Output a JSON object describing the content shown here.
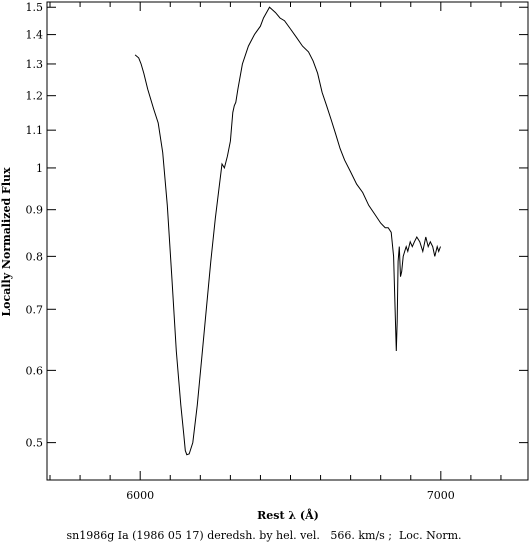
{
  "chart_data": {
    "type": "line",
    "title": "",
    "caption": "sn1986g Ia (1986 05 17) deredsh. by hel. vel.   566. km/s ;  Loc. Norm.",
    "xlabel": "Rest λ (Å)",
    "ylabel": "Locally Normalized Flux",
    "xlim": [
      5690,
      7290
    ],
    "ylim": [
      0.455,
      1.52
    ],
    "y_scale": "log",
    "grid": false,
    "legend": "none",
    "x_ticks": [
      6000,
      7000
    ],
    "y_ticks": [
      0.5,
      0.6,
      0.7,
      0.8,
      0.9,
      1,
      1.1,
      1.2,
      1.3,
      1.4,
      1.5
    ],
    "y_tick_labels": [
      "0.5",
      "0.6",
      "0.7",
      "0.8",
      "0.9",
      "1",
      "1.1",
      "1.2",
      "1.3",
      "1.4",
      "1.5"
    ],
    "line_color": "#000000",
    "series": [
      {
        "x": [
          5983,
          5995,
          6003,
          6012,
          6025,
          6045,
          6060,
          6075,
          6090,
          6105,
          6120,
          6135,
          6145,
          6150,
          6155,
          6163,
          6175,
          6190,
          6205,
          6220,
          6235,
          6250,
          6262,
          6272,
          6280,
          6290,
          6300,
          6303,
          6308,
          6313,
          6318,
          6325,
          6340,
          6360,
          6380,
          6400,
          6410,
          6420,
          6430,
          6440,
          6450,
          6465,
          6480,
          6500,
          6520,
          6540,
          6560,
          6575,
          6590,
          6605,
          6620,
          6635,
          6650,
          6665,
          6680,
          6700,
          6720,
          6740,
          6760,
          6780,
          6800,
          6815,
          6825,
          6835,
          6843,
          6848,
          6852,
          6855,
          6858,
          6862,
          6866,
          6870,
          6875,
          6880,
          6885,
          6890,
          6898,
          6905,
          6912,
          6920,
          6930,
          6940,
          6950,
          6958,
          6965,
          6973,
          6980,
          6988,
          6993,
          6999
        ],
        "y": [
          1.33,
          1.32,
          1.3,
          1.27,
          1.22,
          1.16,
          1.12,
          1.04,
          0.91,
          0.76,
          0.63,
          0.55,
          0.51,
          0.49,
          0.485,
          0.486,
          0.5,
          0.55,
          0.62,
          0.7,
          0.79,
          0.88,
          0.95,
          1.01,
          1.0,
          1.03,
          1.07,
          1.1,
          1.15,
          1.17,
          1.18,
          1.22,
          1.3,
          1.36,
          1.4,
          1.43,
          1.46,
          1.48,
          1.5,
          1.49,
          1.48,
          1.46,
          1.45,
          1.42,
          1.39,
          1.36,
          1.34,
          1.31,
          1.27,
          1.21,
          1.17,
          1.13,
          1.09,
          1.05,
          1.02,
          0.99,
          0.96,
          0.94,
          0.91,
          0.89,
          0.87,
          0.86,
          0.86,
          0.85,
          0.8,
          0.7,
          0.63,
          0.68,
          0.79,
          0.82,
          0.76,
          0.77,
          0.8,
          0.81,
          0.82,
          0.81,
          0.83,
          0.82,
          0.83,
          0.84,
          0.83,
          0.81,
          0.84,
          0.82,
          0.83,
          0.82,
          0.8,
          0.82,
          0.81,
          0.82
        ]
      }
    ]
  }
}
